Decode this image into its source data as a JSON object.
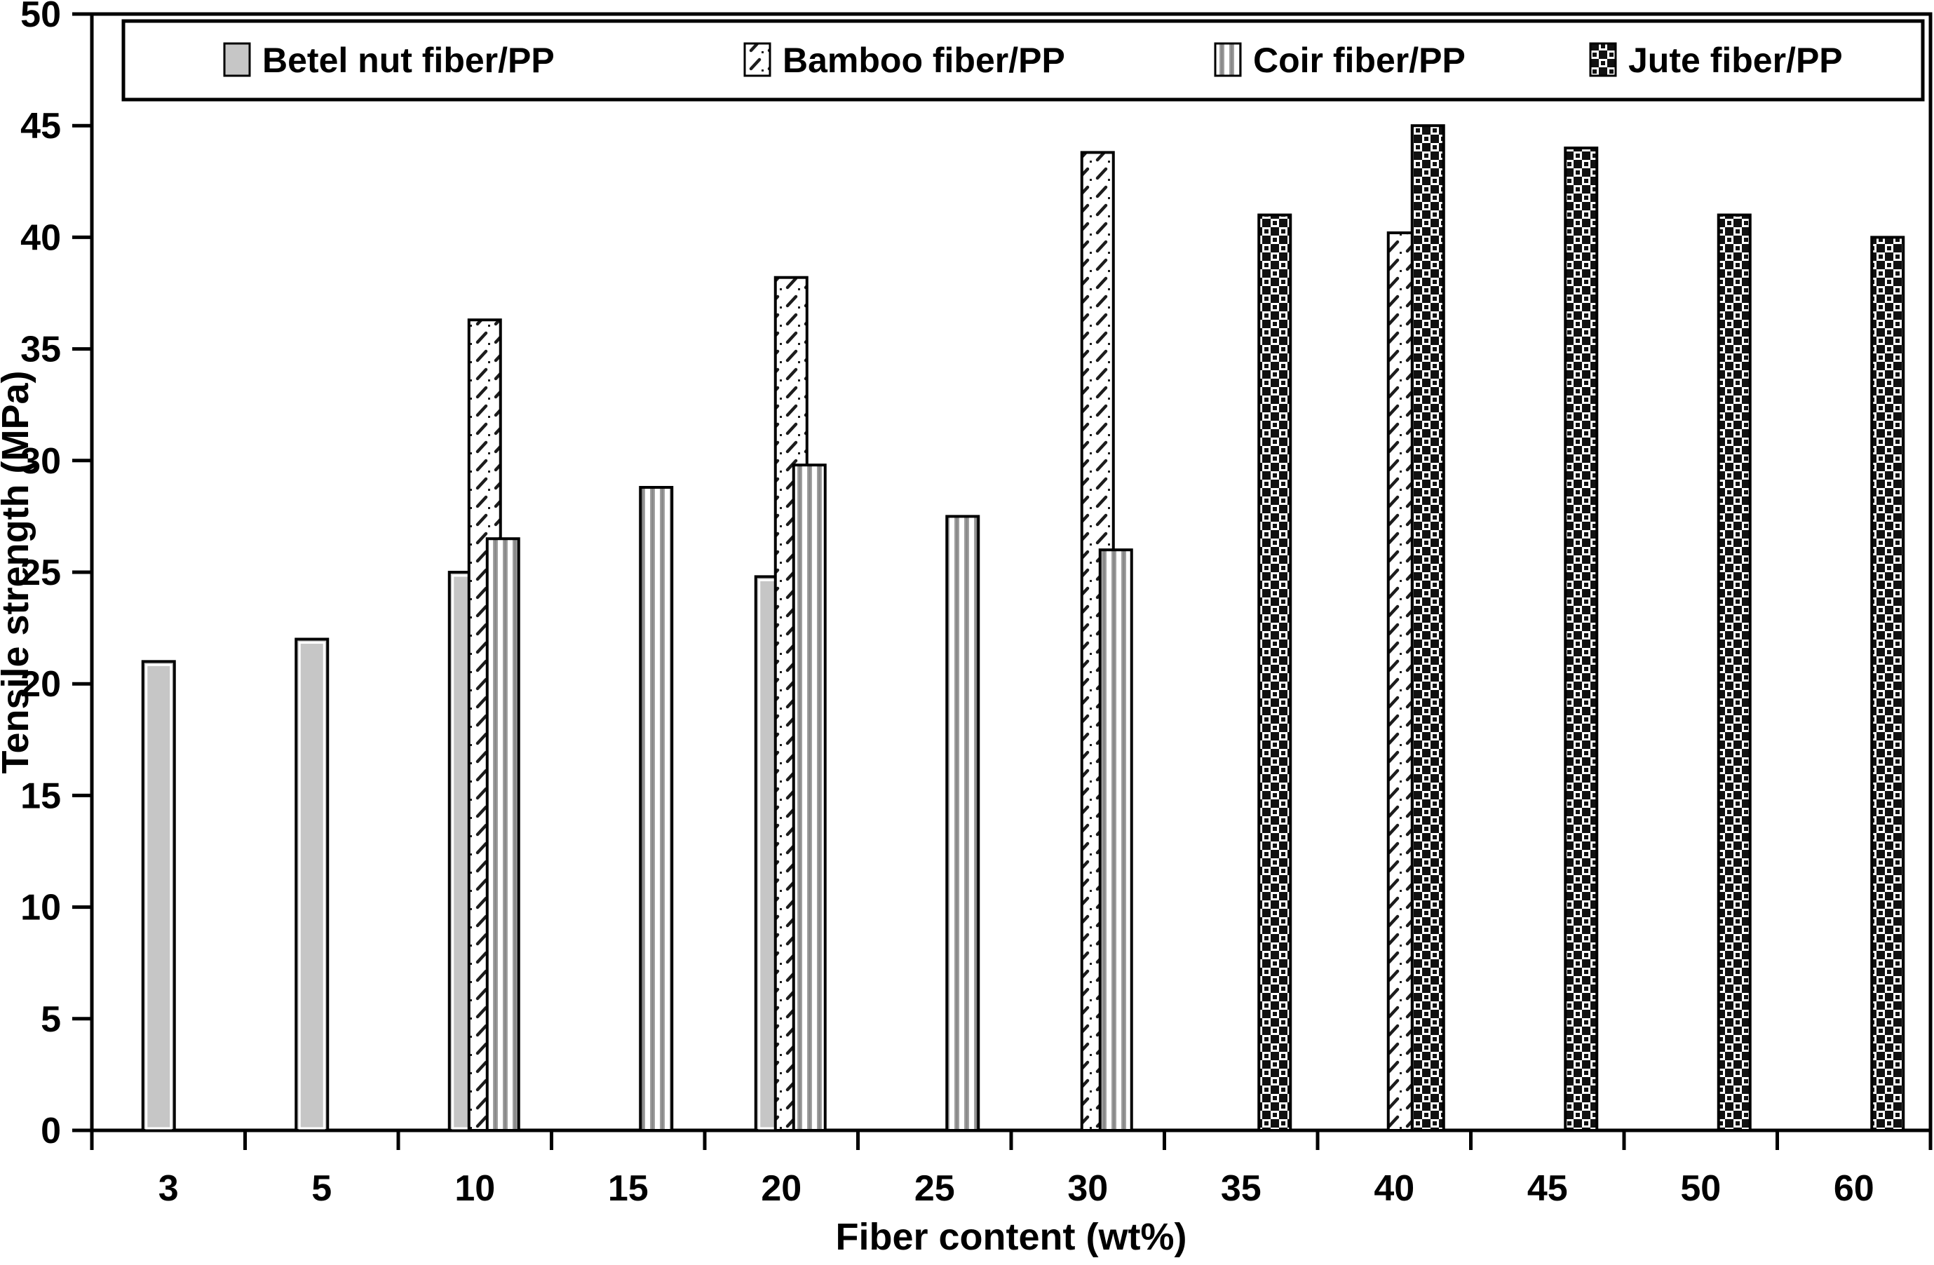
{
  "chart_data": {
    "type": "bar",
    "title": "",
    "xlabel": "Fiber content (wt%)",
    "ylabel": "Tensile strength (MPa)",
    "categories": [
      "3",
      "5",
      "10",
      "15",
      "20",
      "25",
      "30",
      "35",
      "40",
      "45",
      "50",
      "60"
    ],
    "series": [
      {
        "name": "Betel nut fiber/PP",
        "pattern": "solid-gray",
        "values": [
          21,
          22,
          25,
          null,
          24.8,
          null,
          null,
          null,
          null,
          null,
          null,
          null
        ]
      },
      {
        "name": "Bamboo fiber/PP",
        "pattern": "diagonal-hatch",
        "values": [
          null,
          null,
          36.3,
          null,
          38.2,
          null,
          43.8,
          null,
          40.2,
          null,
          null,
          null
        ]
      },
      {
        "name": "Coir fiber/PP",
        "pattern": "vertical-stripes",
        "values": [
          null,
          null,
          26.5,
          28.8,
          29.8,
          27.5,
          26,
          null,
          null,
          null,
          null,
          null
        ]
      },
      {
        "name": "Jute fiber/PP",
        "pattern": "checkerboard",
        "values": [
          null,
          null,
          null,
          null,
          null,
          null,
          null,
          41,
          45,
          44,
          41,
          40
        ]
      }
    ],
    "ylim": [
      0,
      50
    ],
    "y_ticks": [
      0,
      5,
      10,
      15,
      20,
      25,
      30,
      35,
      40,
      45,
      50
    ],
    "grid": false,
    "legend_position": "top",
    "colors": {
      "background": "#ffffff",
      "ink": "#000000",
      "bar_gray": "#c6c6c6",
      "stripe_gray": "#a0a0a0",
      "hatch_dark": "#1c1c1c",
      "checker_dark": "#111111"
    }
  }
}
